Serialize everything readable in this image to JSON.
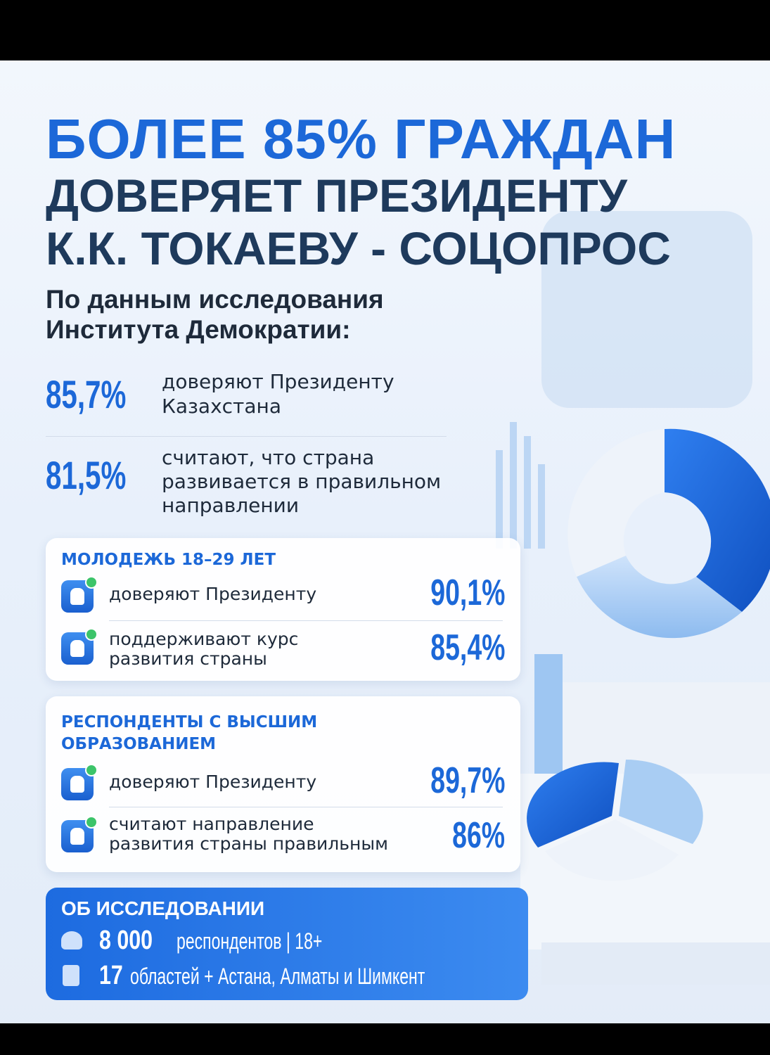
{
  "header": {
    "title": [
      "БОЛЕЕ 85% ГРАЖДАН",
      "ДОВЕРЯЕТ ПРЕЗИДЕНТУ",
      "К.К. ТОКАЕВУ - СОЦОПРОС"
    ],
    "subtitle": [
      "По данным исследования",
      "Института Демократии:"
    ]
  },
  "stats": [
    {
      "value": "85,7%",
      "label": [
        "доверяют Президенту",
        "Казахстана"
      ]
    },
    {
      "value": "81,5%",
      "label": [
        "считают, что страна",
        "развивается в правильном",
        "направлении"
      ]
    }
  ],
  "cards": [
    {
      "title": [
        "МОЛОДЕЖЬ 18–29 ЛЕТ"
      ],
      "items": [
        {
          "label": [
            "доверяют Президенту"
          ],
          "value": "90,1%"
        },
        {
          "label": [
            "поддерживают курс",
            "развития страны"
          ],
          "value": "85,4%"
        }
      ]
    },
    {
      "title": [
        "РЕСПОНДЕНТЫ С ВЫСШИМ",
        "ОБРАЗОВАНИЕМ"
      ],
      "items": [
        {
          "label": [
            "доверяют Президенту"
          ],
          "value": "89,7%"
        },
        {
          "label": [
            "считают направление",
            "развития страны правильным"
          ],
          "value": "86%"
        }
      ]
    }
  ],
  "about": {
    "title": "ОБ ИССЛЕДОВАНИИ",
    "rows": [
      {
        "value": "8 000",
        "text": "респондентов | 18+"
      },
      {
        "value": "17",
        "text": "областей + Астана, Алматы и Шимкент"
      }
    ]
  }
}
